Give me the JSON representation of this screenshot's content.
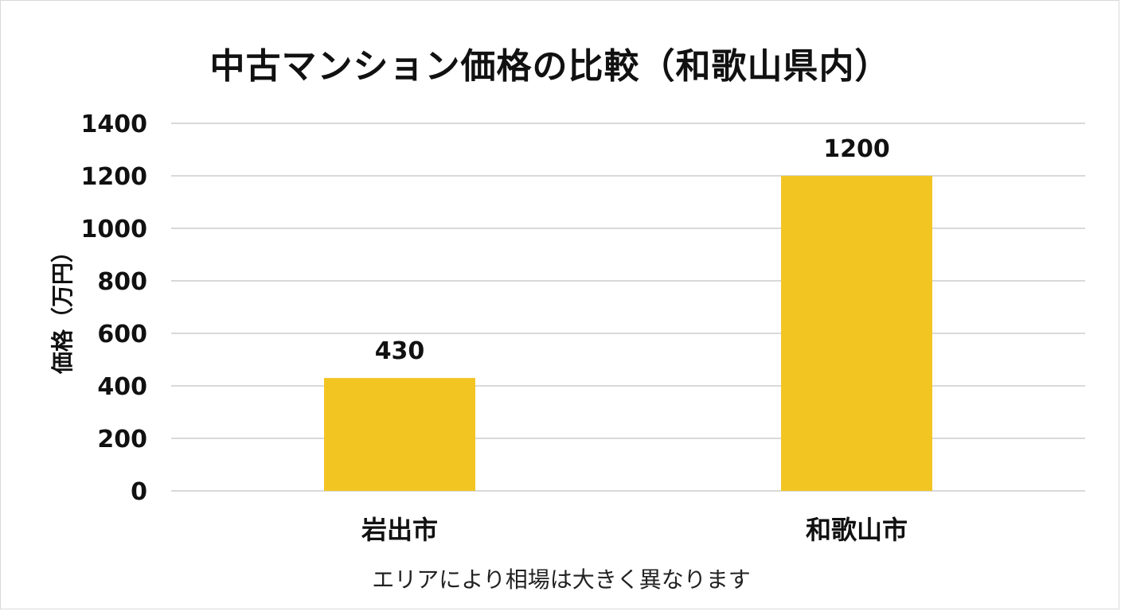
{
  "chart_data": {
    "type": "bar",
    "title": "中古マンション価格の比較（和歌山県内）",
    "ylabel": "価格（万円）",
    "xlabel": "",
    "categories": [
      "岩出市",
      "和歌山市"
    ],
    "values": [
      430,
      1200
    ],
    "data_labels": [
      "430",
      "1200"
    ],
    "ylim": [
      0,
      1400
    ],
    "yticks": [
      "0",
      "200",
      "400",
      "600",
      "800",
      "1000",
      "1200",
      "1400"
    ],
    "grid": true,
    "legend": "none",
    "bar_color": "#F2C523",
    "grid_color": "#d9d9d9"
  },
  "footnote": "エリアにより相場は大きく異なります"
}
